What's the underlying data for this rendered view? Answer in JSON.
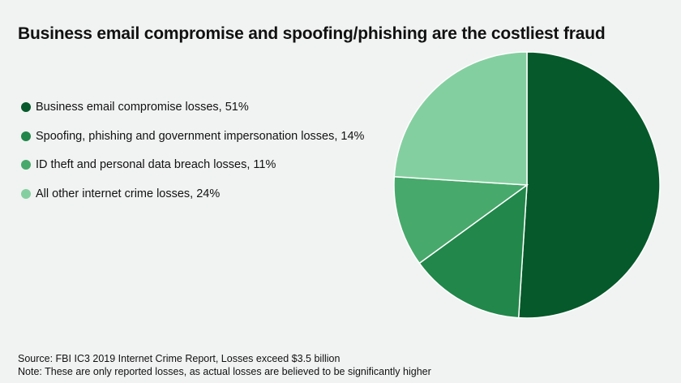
{
  "chart_data": {
    "type": "pie",
    "title": "Business email compromise and spoofing/phishing are the costliest fraud",
    "slices": [
      {
        "label": "Business email compromise losses, 51%",
        "value": 51,
        "color": "#05592a"
      },
      {
        "label": "Spoofing, phishing and government impersonation losses, 14%",
        "value": 14,
        "color": "#21874a"
      },
      {
        "label": "ID theft and personal data breach losses, 11%",
        "value": 11,
        "color": "#47a96b"
      },
      {
        "label": "All other internet crime losses, 24%",
        "value": 24,
        "color": "#84cfa0"
      }
    ],
    "legend_position": "left"
  },
  "footer": {
    "source": "Source: FBI IC3 2019 Internet Crime Report, Losses exceed $3.5 billion",
    "note": "Note: These are only reported losses, as actual losses are believed to be significantly higher"
  }
}
